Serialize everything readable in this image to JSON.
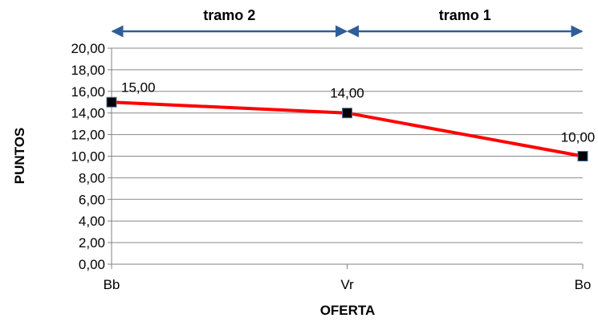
{
  "chart_data": {
    "type": "line",
    "categories": [
      "Bb",
      "Vr",
      "Bo"
    ],
    "series": [
      {
        "values": [
          15.0,
          14.0,
          10.0
        ],
        "data_labels": [
          "15,00",
          "14,00",
          "10,00"
        ]
      }
    ],
    "xlabel": "OFERTA",
    "ylabel": "PUNTOS",
    "ylim": [
      0,
      20
    ],
    "y_ticks": [
      "0,00",
      "2,00",
      "4,00",
      "6,00",
      "8,00",
      "10,00",
      "12,00",
      "14,00",
      "16,00",
      "18,00",
      "20,00"
    ],
    "segments": [
      {
        "label": "tramo 2",
        "from": "Bb",
        "to": "Vr"
      },
      {
        "label": "tramo 1",
        "from": "Vr",
        "to": "Bo"
      }
    ],
    "grid": true,
    "colors": {
      "line": "#ff0000",
      "marker": "#000000",
      "arrow": "#2e5e99",
      "grid": "#888888"
    }
  }
}
